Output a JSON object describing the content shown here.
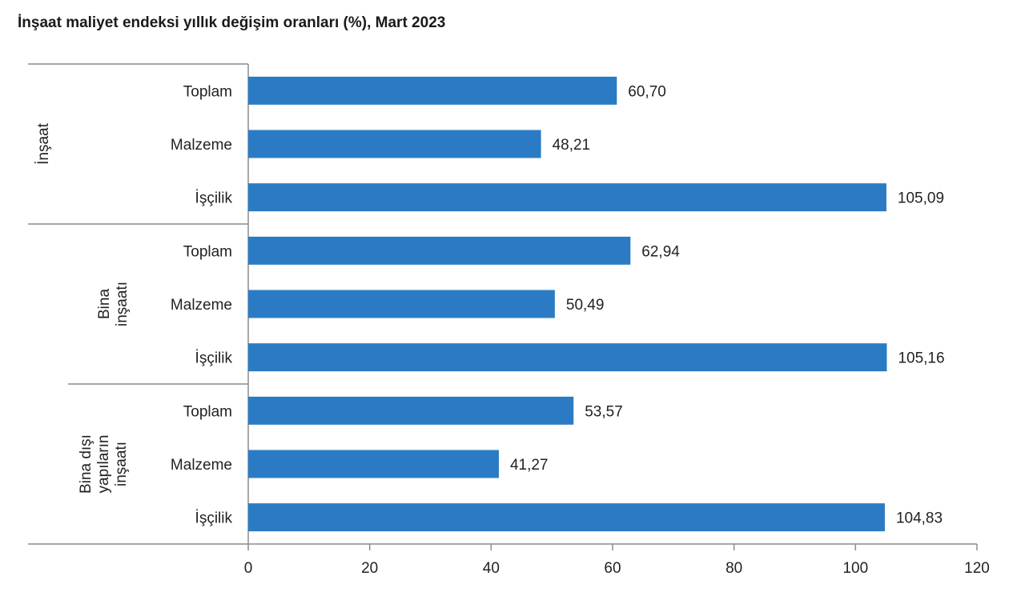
{
  "chart_data": {
    "type": "bar",
    "orientation": "horizontal",
    "title": "İnşaat maliyet endeksi yıllık değişim oranları (%), Mart 2023",
    "xlabel": "",
    "ylabel": "",
    "xlim": [
      0,
      120
    ],
    "xticks": [
      "0",
      "20",
      "40",
      "60",
      "80",
      "100",
      "120"
    ],
    "grid": false,
    "bar_color": "#2b7bc4",
    "groups": [
      {
        "label": [
          "İnşaat"
        ],
        "categories": [
          "Toplam",
          "Malzeme",
          "İşçilik"
        ],
        "values": [
          60.7,
          48.21,
          105.09
        ],
        "value_labels": [
          "60,70",
          "48,21",
          "105,09"
        ]
      },
      {
        "label": [
          "Bina",
          "inşaatı"
        ],
        "categories": [
          "Toplam",
          "Malzeme",
          "İşçilik"
        ],
        "values": [
          62.94,
          50.49,
          105.16
        ],
        "value_labels": [
          "62,94",
          "50,49",
          "105,16"
        ]
      },
      {
        "label": [
          "Bina dışı",
          "yapıların",
          "inşaatı"
        ],
        "categories": [
          "Toplam",
          "Malzeme",
          "İşçilik"
        ],
        "values": [
          53.57,
          41.27,
          104.83
        ],
        "value_labels": [
          "53,57",
          "41,27",
          "104,83"
        ]
      }
    ]
  }
}
